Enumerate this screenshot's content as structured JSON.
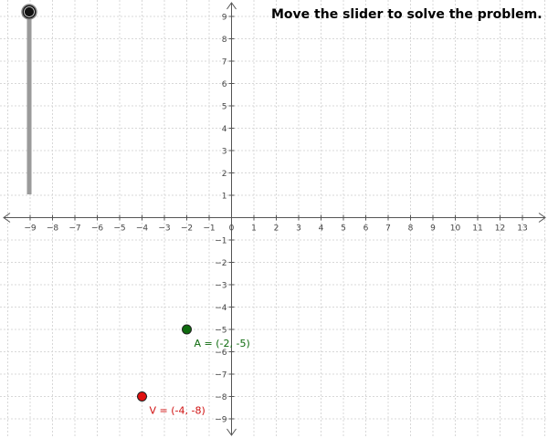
{
  "title": "Move the slider to solve the problem.",
  "axes": {
    "x_range": [
      -10,
      14
    ],
    "y_range": [
      -10,
      10
    ],
    "x_ticks": [
      -9,
      -8,
      -7,
      -6,
      -5,
      -4,
      -3,
      -2,
      -1,
      0,
      1,
      2,
      3,
      4,
      5,
      6,
      7,
      8,
      9,
      10,
      11,
      12,
      13
    ],
    "y_ticks": [
      -9,
      -8,
      -7,
      -6,
      -5,
      -4,
      -3,
      -2,
      -1,
      1,
      2,
      3,
      4,
      5,
      6,
      7,
      8,
      9
    ],
    "grid": true,
    "colors": {
      "grid": "#d8d8d8",
      "axis": "#555555",
      "labels": "#444444"
    }
  },
  "points": [
    {
      "id": "A",
      "label": "A = (-2, -5)",
      "x": -2,
      "y": -5,
      "color": "#0e6b0e",
      "label_color": "#0e6b0e"
    },
    {
      "id": "V",
      "label": "V = (-4, -8)",
      "x": -4,
      "y": -8,
      "color": "#e01010",
      "label_color": "#d01010"
    }
  ],
  "slider": {
    "value_fraction": 1.0,
    "track_color": "#9a9a9a",
    "knob_color": "#111111"
  }
}
